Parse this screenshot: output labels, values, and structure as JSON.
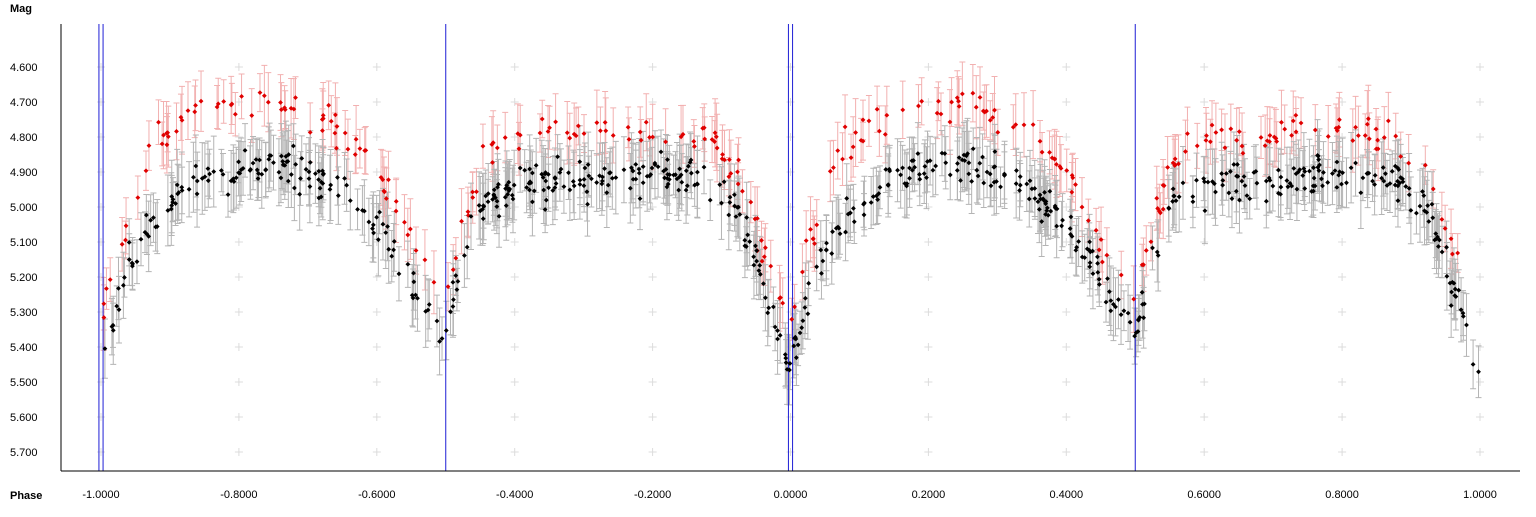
{
  "chart_data": {
    "type": "scatter",
    "xlabel": "Phase",
    "ylabel": "Mag",
    "xlim": [
      -1.04,
      1.05
    ],
    "ylim": [
      5.75,
      4.48
    ],
    "y_inverted": true,
    "xticks": [
      -1.0,
      -0.8,
      -0.6,
      -0.4,
      -0.2,
      0.0,
      0.2,
      0.4,
      0.6,
      0.8,
      1.0
    ],
    "xtick_labels": [
      "-1.0000",
      "-0.8000",
      "-0.6000",
      "-0.4000",
      "-0.2000",
      "0.0000",
      "0.2000",
      "0.4000",
      "0.6000",
      "0.8000",
      "1.0000"
    ],
    "yticks": [
      4.6,
      4.7,
      4.8,
      4.9,
      5.0,
      5.1,
      5.2,
      5.3,
      5.4,
      5.5,
      5.6,
      5.7
    ],
    "ytick_labels": [
      "4.600",
      "4.700",
      "4.800",
      "4.900",
      "5.000",
      "5.100",
      "5.200",
      "5.300",
      "5.400",
      "5.500",
      "5.600",
      "5.700"
    ],
    "grid": "light gray plus markers",
    "error_bars": true,
    "light_curve": {
      "phases": [
        0.0,
        0.02,
        0.05,
        0.08,
        0.12,
        0.18,
        0.25,
        0.3,
        0.36,
        0.42,
        0.47,
        0.5,
        0.52,
        0.55,
        0.6,
        0.7,
        0.8,
        0.88,
        0.92,
        0.95,
        0.98,
        1.0
      ],
      "black_mag": [
        5.45,
        5.3,
        5.12,
        5.03,
        4.95,
        4.9,
        4.88,
        4.9,
        4.97,
        5.1,
        5.28,
        5.35,
        5.2,
        5.0,
        4.94,
        4.92,
        4.9,
        4.92,
        5.0,
        5.15,
        5.35,
        5.45
      ],
      "red_mag": [
        5.3,
        5.15,
        4.98,
        4.82,
        4.76,
        4.7,
        4.7,
        4.73,
        4.8,
        4.96,
        5.2,
        5.28,
        5.1,
        4.88,
        4.8,
        4.78,
        4.78,
        4.8,
        4.88,
        5.05,
        5.25,
        5.3
      ]
    },
    "series": [
      {
        "name": "",
        "color": "#000000",
        "error_color": "#b4b4b4",
        "points_per_cycle": 340,
        "scatter": 0.055,
        "error_half": 0.08
      },
      {
        "name": "",
        "color": "#e00000",
        "error_color": "#f2b0b0",
        "points_per_cycle": 150,
        "scatter": 0.05,
        "error_half": 0.075
      }
    ],
    "vertical_markers": [
      {
        "x": -1.003,
        "color": "#1f1fd6"
      },
      {
        "x": -0.997,
        "color": "#1f1fd6"
      },
      {
        "x": -0.5,
        "color": "#1f1fd6"
      },
      {
        "x": -0.003,
        "color": "#1f1fd6"
      },
      {
        "x": 0.003,
        "color": "#1f1fd6"
      },
      {
        "x": 0.5,
        "color": "#1f1fd6"
      }
    ]
  }
}
